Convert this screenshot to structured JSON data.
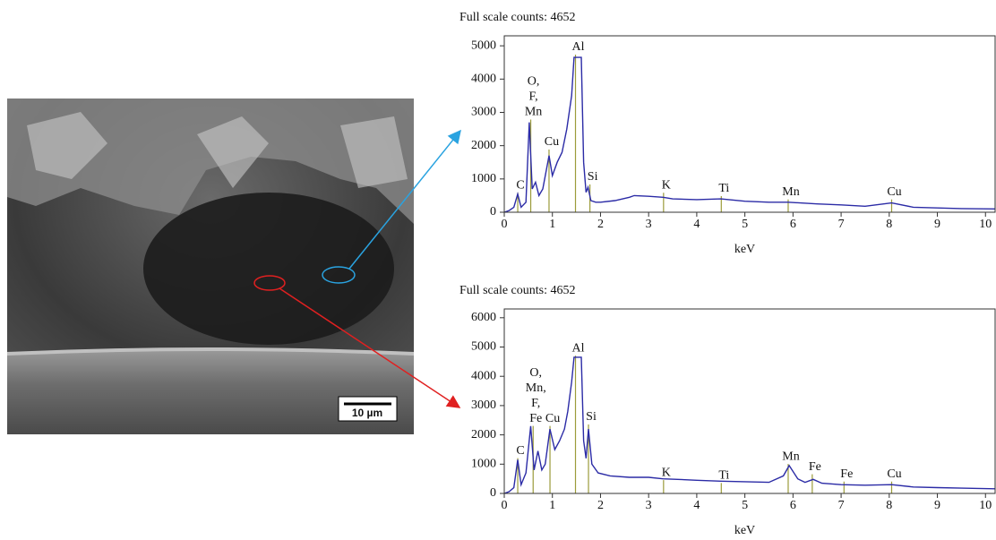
{
  "image": {
    "scale_bar": "10 µm"
  },
  "chart_data": [
    {
      "type": "line",
      "title": "Full scale counts: 4652",
      "x_label": "keV",
      "color": "#2b2ba6",
      "marker_color": "#9b9b3a",
      "xlim": [
        0,
        10.2
      ],
      "xticks": [
        0,
        1,
        2,
        3,
        4,
        5,
        6,
        7,
        8,
        9,
        10
      ],
      "ylim": [
        0,
        5300
      ],
      "yticks": [
        0,
        1000,
        2000,
        3000,
        4000,
        5000
      ],
      "x": [
        0,
        0.1,
        0.2,
        0.28,
        0.35,
        0.45,
        0.52,
        0.58,
        0.65,
        0.72,
        0.8,
        0.93,
        1.0,
        1.1,
        1.2,
        1.3,
        1.4,
        1.45,
        1.6,
        1.65,
        1.7,
        1.74,
        1.8,
        1.9,
        2.0,
        2.3,
        2.6,
        2.7,
        3.0,
        3.3,
        3.5,
        4.0,
        4.5,
        5.0,
        5.5,
        5.9,
        6.5,
        7.0,
        7.5,
        8.05,
        8.5,
        9.0,
        9.5,
        10.2
      ],
      "values": [
        0,
        50,
        150,
        550,
        150,
        300,
        2700,
        700,
        900,
        500,
        700,
        1700,
        1100,
        1500,
        1800,
        2500,
        3500,
        4652,
        4652,
        1500,
        600,
        750,
        350,
        300,
        300,
        350,
        450,
        500,
        480,
        450,
        400,
        380,
        400,
        330,
        300,
        300,
        250,
        220,
        180,
        280,
        150,
        130,
        110,
        100
      ],
      "annotations": [
        {
          "lines": [
            "C"
          ],
          "x": 0.28,
          "y": 800
        },
        {
          "lines": [
            "O,",
            "F,",
            "Mn"
          ],
          "x": 0.55,
          "y": 3000
        },
        {
          "lines": [
            "Cu"
          ],
          "x": 0.93,
          "y": 2100
        },
        {
          "lines": [
            "Al"
          ],
          "x": 1.48,
          "y": 4950
        },
        {
          "lines": [
            "Si"
          ],
          "x": 1.78,
          "y": 1050
        },
        {
          "lines": [
            "K"
          ],
          "x": 3.31,
          "y": 800
        },
        {
          "lines": [
            "Ti"
          ],
          "x": 4.51,
          "y": 700
        },
        {
          "lines": [
            "Mn"
          ],
          "x": 5.9,
          "y": 600
        },
        {
          "lines": [
            "Cu"
          ],
          "x": 8.05,
          "y": 600
        }
      ]
    },
    {
      "type": "line",
      "title": "Full scale counts: 4652",
      "x_label": "keV",
      "color": "#2b2ba6",
      "marker_color": "#9b9b3a",
      "xlim": [
        0,
        10.2
      ],
      "xticks": [
        0,
        1,
        2,
        3,
        4,
        5,
        6,
        7,
        8,
        9,
        10
      ],
      "ylim": [
        0,
        6300
      ],
      "yticks": [
        0,
        1000,
        2000,
        3000,
        4000,
        5000,
        6000
      ],
      "x": [
        0,
        0.1,
        0.2,
        0.28,
        0.35,
        0.45,
        0.55,
        0.62,
        0.7,
        0.78,
        0.85,
        0.95,
        1.05,
        1.15,
        1.25,
        1.32,
        1.4,
        1.45,
        1.6,
        1.65,
        1.7,
        1.75,
        1.82,
        1.95,
        2.2,
        2.6,
        3.0,
        3.3,
        3.6,
        4.0,
        4.5,
        5.0,
        5.5,
        5.8,
        5.92,
        6.1,
        6.25,
        6.42,
        6.6,
        7.0,
        7.5,
        8.05,
        8.5,
        9.0,
        9.5,
        10.2
      ],
      "values": [
        0,
        60,
        200,
        1150,
        300,
        700,
        2300,
        800,
        1450,
        800,
        1000,
        2200,
        1500,
        1800,
        2200,
        2800,
        3800,
        4652,
        4652,
        1800,
        1200,
        2200,
        1000,
        700,
        600,
        550,
        550,
        500,
        480,
        450,
        420,
        400,
        380,
        600,
        950,
        500,
        380,
        480,
        350,
        300,
        280,
        300,
        220,
        200,
        180,
        160
      ],
      "annotations": [
        {
          "lines": [
            "C"
          ],
          "x": 0.28,
          "y": 1450
        },
        {
          "lines": [
            "O,",
            "Mn,",
            "F,",
            "Fe"
          ],
          "x": 0.6,
          "y": 2550
        },
        {
          "lines": [
            "Cu"
          ],
          "x": 0.95,
          "y": 2550
        },
        {
          "lines": [
            "Al"
          ],
          "x": 1.48,
          "y": 4950
        },
        {
          "lines": [
            "Si"
          ],
          "x": 1.75,
          "y": 2600
        },
        {
          "lines": [
            "K"
          ],
          "x": 3.31,
          "y": 700
        },
        {
          "lines": [
            "Ti"
          ],
          "x": 4.51,
          "y": 600
        },
        {
          "lines": [
            "Mn"
          ],
          "x": 5.9,
          "y": 1250
        },
        {
          "lines": [
            "Fe"
          ],
          "x": 6.4,
          "y": 900
        },
        {
          "lines": [
            "Fe"
          ],
          "x": 7.06,
          "y": 650
        },
        {
          "lines": [
            "Cu"
          ],
          "x": 8.05,
          "y": 650
        }
      ]
    }
  ]
}
